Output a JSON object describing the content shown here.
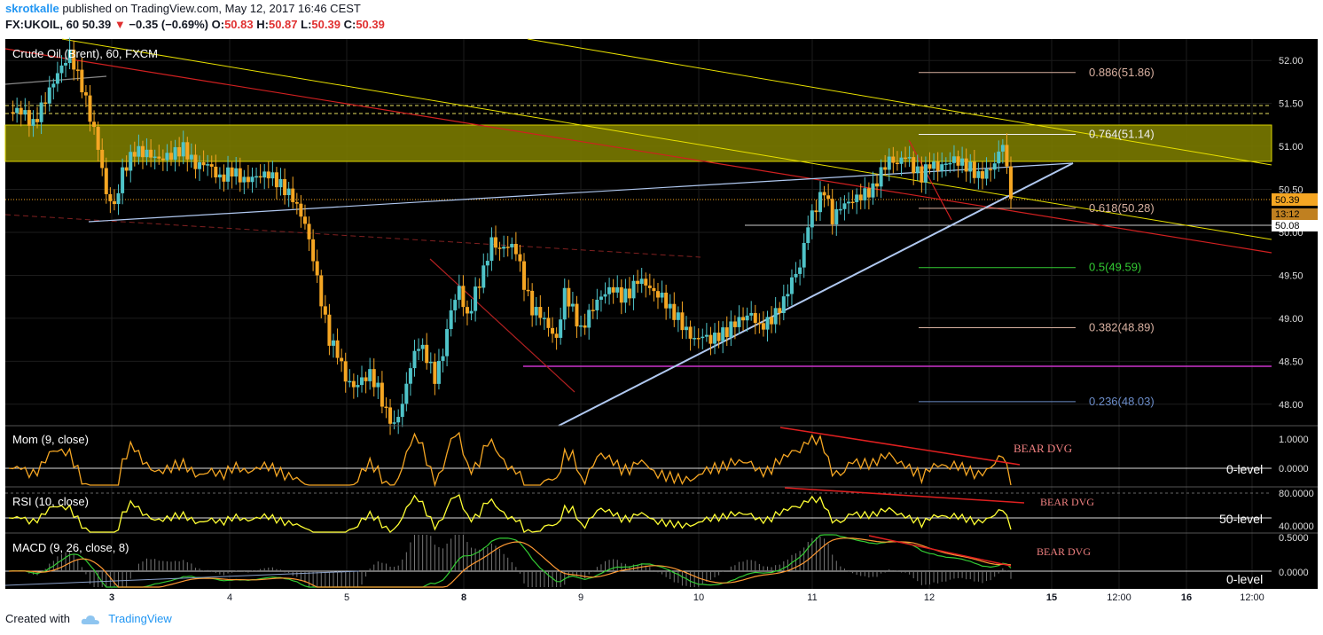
{
  "header": {
    "author": "skrotkalle",
    "published": "published on TradingView.com, May 12, 2017 16:46 CEST",
    "symbol_line_prefix": "FX:UKOIL, 60",
    "last": "50.39",
    "change": "−0.35 (−0.69%)",
    "open_label": "O:",
    "open": "50.83",
    "high_label": "H:",
    "high": "50.87",
    "low_label": "L:",
    "low": "50.39",
    "close_label": "C:",
    "close": "50.39"
  },
  "footer": {
    "created_with": "Created with",
    "brand": "TradingView"
  },
  "colors": {
    "background": "#000000",
    "candle_up": "#4fc3c8",
    "candle_down": "#f5a623",
    "zone": "#7a7a00",
    "fib_label": "#d8b0a0",
    "support_line": "#b0c8f0",
    "mom_line": "#f5a623",
    "rsi_line": "#ffff33",
    "macd_line": "#33cc33",
    "signal_line": "#ff9933"
  },
  "chart_data": [
    {
      "type": "candlestick",
      "title": "Crude Oil (Brent), 60, FXCM",
      "ylim": [
        47.75,
        52.25
      ],
      "y_ticks": [
        "52.00",
        "51.50",
        "51.00",
        "50.50",
        "50.00",
        "49.50",
        "49.00",
        "48.50",
        "48.00"
      ],
      "x_ticks": [
        "3",
        "4",
        "5",
        "8",
        "9",
        "10",
        "11",
        "12",
        "15",
        "12:00",
        "16",
        "12:00"
      ],
      "price_labels": {
        "last": "50.39",
        "countdown": "13:12",
        "level": "50.08"
      },
      "close_path": [
        [
          0,
          51.4
        ],
        [
          6,
          51.42
        ],
        [
          12,
          51.25
        ],
        [
          18,
          51.55
        ],
        [
          24,
          51.85
        ],
        [
          30,
          52.08
        ],
        [
          36,
          51.7
        ],
        [
          40,
          51.35
        ],
        [
          44,
          51.0
        ],
        [
          48,
          50.45
        ],
        [
          52,
          50.3
        ],
        [
          56,
          50.7
        ],
        [
          62,
          50.95
        ],
        [
          68,
          50.92
        ],
        [
          74,
          50.85
        ],
        [
          80,
          50.9
        ],
        [
          86,
          50.98
        ],
        [
          92,
          50.78
        ],
        [
          98,
          50.8
        ],
        [
          104,
          50.62
        ],
        [
          110,
          50.72
        ],
        [
          116,
          50.6
        ],
        [
          122,
          50.65
        ],
        [
          128,
          50.68
        ],
        [
          134,
          50.55
        ],
        [
          140,
          50.4
        ],
        [
          146,
          50.1
        ],
        [
          150,
          49.7
        ],
        [
          154,
          49.2
        ],
        [
          158,
          48.75
        ],
        [
          162,
          48.6
        ],
        [
          166,
          48.3
        ],
        [
          170,
          48.2
        ],
        [
          174,
          48.28
        ],
        [
          178,
          48.35
        ],
        [
          182,
          48.18
        ],
        [
          186,
          47.9
        ],
        [
          190,
          47.75
        ],
        [
          194,
          48.0
        ],
        [
          198,
          48.45
        ],
        [
          202,
          48.7
        ],
        [
          206,
          48.55
        ],
        [
          210,
          48.3
        ],
        [
          214,
          48.6
        ],
        [
          218,
          49.1
        ],
        [
          222,
          49.35
        ],
        [
          226,
          49.0
        ],
        [
          230,
          49.3
        ],
        [
          234,
          49.55
        ],
        [
          238,
          49.9
        ],
        [
          242,
          49.8
        ],
        [
          246,
          49.85
        ],
        [
          250,
          49.8
        ],
        [
          254,
          49.4
        ],
        [
          258,
          49.1
        ],
        [
          262,
          49.05
        ],
        [
          266,
          48.9
        ],
        [
          270,
          48.75
        ],
        [
          274,
          49.3
        ],
        [
          278,
          49.1
        ],
        [
          282,
          48.85
        ],
        [
          286,
          49.05
        ],
        [
          290,
          49.2
        ],
        [
          294,
          49.3
        ],
        [
          298,
          49.35
        ],
        [
          302,
          49.25
        ],
        [
          306,
          49.3
        ],
        [
          310,
          49.45
        ],
        [
          314,
          49.4
        ],
        [
          318,
          49.3
        ],
        [
          322,
          49.25
        ],
        [
          326,
          49.1
        ],
        [
          330,
          49.0
        ],
        [
          334,
          48.85
        ],
        [
          338,
          48.75
        ],
        [
          342,
          48.8
        ],
        [
          346,
          48.75
        ],
        [
          350,
          48.8
        ],
        [
          354,
          48.85
        ],
        [
          358,
          48.95
        ],
        [
          362,
          49.0
        ],
        [
          366,
          49.05
        ],
        [
          370,
          48.9
        ],
        [
          374,
          48.95
        ],
        [
          378,
          49.05
        ],
        [
          382,
          49.2
        ],
        [
          386,
          49.45
        ],
        [
          390,
          49.6
        ],
        [
          394,
          50.1
        ],
        [
          398,
          50.3
        ],
        [
          402,
          50.5
        ],
        [
          406,
          50.15
        ],
        [
          410,
          50.3
        ],
        [
          414,
          50.35
        ],
        [
          418,
          50.4
        ],
        [
          422,
          50.45
        ],
        [
          426,
          50.5
        ],
        [
          430,
          50.7
        ],
        [
          434,
          50.85
        ],
        [
          438,
          50.8
        ],
        [
          442,
          50.9
        ],
        [
          446,
          50.75
        ],
        [
          450,
          50.65
        ],
        [
          454,
          50.8
        ],
        [
          458,
          50.75
        ],
        [
          462,
          50.8
        ],
        [
          466,
          50.85
        ],
        [
          470,
          50.8
        ],
        [
          474,
          50.75
        ],
        [
          478,
          50.65
        ],
        [
          482,
          50.7
        ],
        [
          486,
          50.8
        ],
        [
          490,
          51.05
        ],
        [
          494,
          50.39
        ]
      ],
      "fib_levels": [
        {
          "label": "0.886(51.86)",
          "value": 51.86,
          "color": "#d8b0a0"
        },
        {
          "label": "0.764(51.14)",
          "value": 51.14,
          "color": "#f0f0f0"
        },
        {
          "label": "0.618(50.28)",
          "value": 50.28,
          "color": "#d8b0a0"
        },
        {
          "label": "0.5(49.59)",
          "value": 49.59,
          "color": "#33cc33"
        },
        {
          "label": "0.382(48.89)",
          "value": 48.89,
          "color": "#d8b0a0"
        },
        {
          "label": "0.236(48.03)",
          "value": 48.03,
          "color": "#6b8cc8"
        }
      ]
    },
    {
      "type": "line",
      "title": "Mom (9, close)",
      "y_ticks": [
        "1.0000",
        "0.0000"
      ],
      "zero_label": "0-level",
      "annotation": "BEAR DVG"
    },
    {
      "type": "line",
      "title": "RSI (10, close)",
      "y_ticks": [
        "80.0000",
        "40.0000"
      ],
      "level_label": "50-level",
      "annotation": "BEAR DVG"
    },
    {
      "type": "line",
      "title": "MACD (9, 26, close, 8)",
      "y_ticks": [
        "0.5000",
        "0.0000"
      ],
      "zero_label": "0-level",
      "annotation": "BEAR DVG"
    }
  ]
}
